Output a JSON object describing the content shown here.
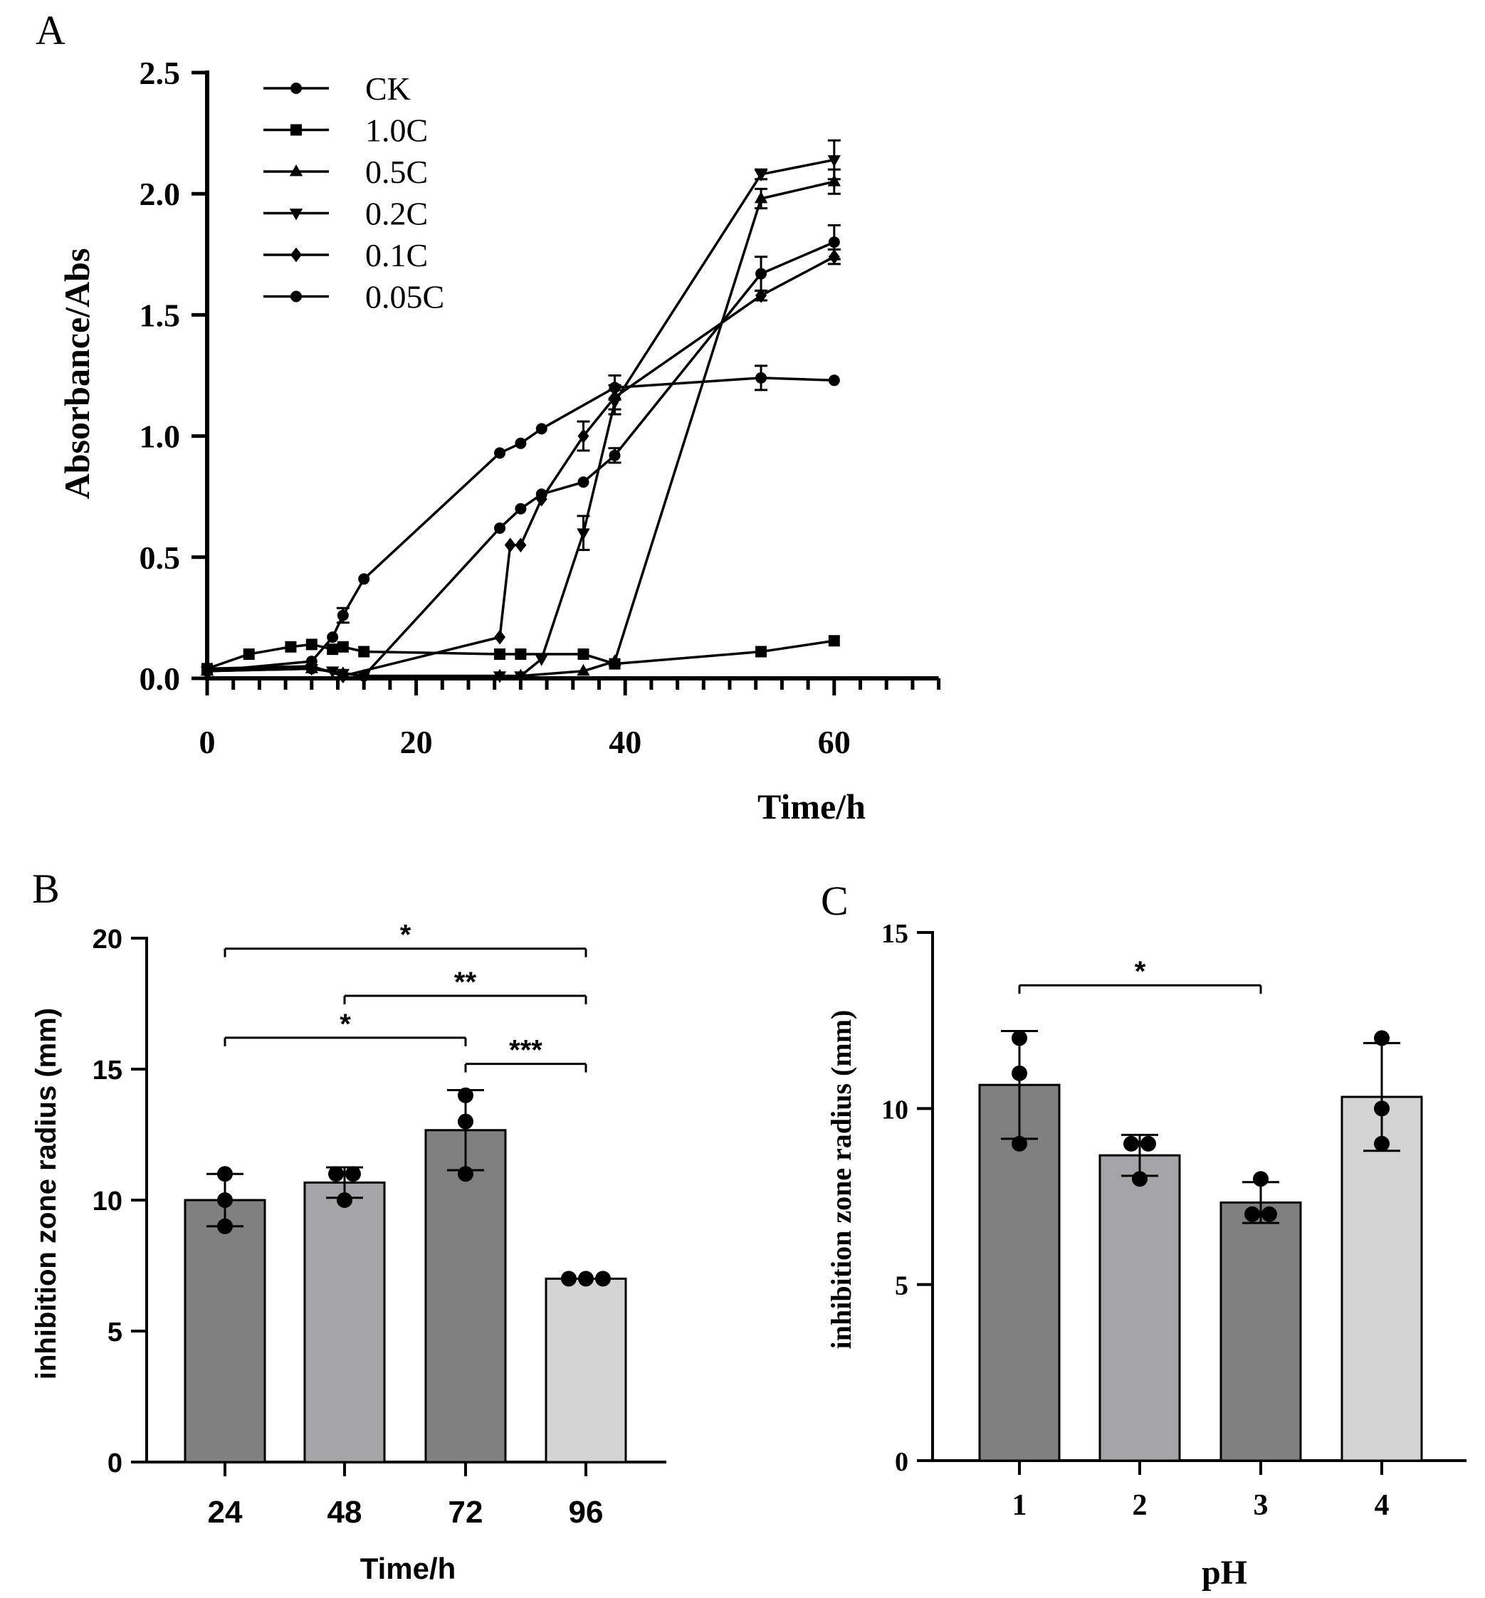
{
  "chart_data": [
    {
      "panel": "A",
      "type": "line",
      "xlabel": "Time/h",
      "ylabel": "Absorbance/Abs",
      "xlim": [
        0,
        70
      ],
      "ylim": [
        0,
        2.5
      ],
      "x_ticks": [
        "0",
        "20",
        "40",
        "60"
      ],
      "x_tick_values": [
        0,
        20,
        40,
        60
      ],
      "y_ticks": [
        "0.0",
        "0.5",
        "1.0",
        "1.5",
        "2.0",
        "2.5"
      ],
      "y_tick_values": [
        0,
        0.5,
        1.0,
        1.5,
        2.0,
        2.5
      ],
      "legend_position": "top-left",
      "series": [
        {
          "name": "CK",
          "marker": "circle",
          "x": [
            0,
            10,
            12,
            13,
            15,
            28,
            30,
            32,
            39,
            53,
            60
          ],
          "y": [
            0.03,
            0.07,
            0.17,
            0.26,
            0.41,
            0.93,
            0.97,
            1.03,
            1.2,
            1.24,
            1.23
          ],
          "err": [
            0,
            0,
            0,
            0.03,
            0,
            0,
            0,
            0,
            0.05,
            0.05,
            0
          ]
        },
        {
          "name": "1.0C",
          "marker": "square",
          "x": [
            0,
            4,
            8,
            10,
            12,
            13,
            15,
            28,
            30,
            36,
            39,
            53,
            60
          ],
          "y": [
            0.04,
            0.1,
            0.13,
            0.14,
            0.12,
            0.13,
            0.11,
            0.1,
            0.1,
            0.1,
            0.06,
            0.11,
            0.155
          ],
          "err": [
            0,
            0,
            0,
            0,
            0,
            0,
            0,
            0,
            0,
            0,
            0,
            0,
            0
          ]
        },
        {
          "name": "0.5C",
          "marker": "triangle-up",
          "x": [
            0,
            10,
            13,
            15,
            28,
            30,
            36,
            39,
            53,
            60
          ],
          "y": [
            0.03,
            0.04,
            0.02,
            0.01,
            0.01,
            0.01,
            0.03,
            0.07,
            1.98,
            2.05
          ],
          "err": [
            0,
            0,
            0,
            0,
            0,
            0,
            0,
            0,
            0.04,
            0.05
          ]
        },
        {
          "name": "0.2C",
          "marker": "triangle-down",
          "x": [
            0,
            10,
            12,
            13,
            15,
            28,
            30,
            32,
            36,
            39,
            53,
            60
          ],
          "y": [
            0.03,
            0.04,
            0.03,
            0.02,
            0.01,
            0.01,
            0.01,
            0.08,
            0.6,
            1.14,
            2.08,
            2.14
          ],
          "err": [
            0,
            0,
            0,
            0,
            0,
            0,
            0,
            0,
            0.07,
            0.05,
            0.02,
            0.08
          ]
        },
        {
          "name": "0.1C",
          "marker": "diamond",
          "x": [
            0,
            10,
            13,
            28,
            29,
            30,
            32,
            36,
            39,
            53,
            60
          ],
          "y": [
            0.04,
            0.05,
            0.01,
            0.17,
            0.55,
            0.55,
            0.74,
            1.0,
            1.16,
            1.58,
            1.74
          ],
          "err": [
            0,
            0,
            0,
            0,
            0,
            0,
            0,
            0.06,
            0.05,
            0.02,
            0.03
          ]
        },
        {
          "name": "0.05C",
          "marker": "circle",
          "x": [
            0,
            10,
            15,
            28,
            30,
            32,
            36,
            39,
            53,
            60
          ],
          "y": [
            0.04,
            0.04,
            0.01,
            0.62,
            0.7,
            0.76,
            0.81,
            0.92,
            1.67,
            1.8
          ],
          "err": [
            0,
            0,
            0,
            0,
            0,
            0,
            0,
            0.03,
            0.07,
            0.07
          ]
        }
      ]
    },
    {
      "panel": "B",
      "type": "bar",
      "xlabel": "Time/h",
      "ylabel": "inhibition zone radius (mm)",
      "ylim": [
        0,
        20
      ],
      "y_ticks": [
        "0",
        "5",
        "10",
        "15",
        "20"
      ],
      "y_tick_values": [
        0,
        5,
        10,
        15,
        20
      ],
      "categories": [
        "24",
        "48",
        "72",
        "96"
      ],
      "values": [
        10,
        10.67,
        12.67,
        7
      ],
      "errors": [
        1,
        0.58,
        1.53,
        0
      ],
      "colors": [
        "#808080",
        "#a5a5a8",
        "#808080",
        "#d4d4d4"
      ],
      "points": [
        [
          11,
          10,
          9
        ],
        [
          11,
          11,
          10
        ],
        [
          14,
          13,
          11
        ],
        [
          7,
          7,
          7
        ]
      ],
      "significance": [
        {
          "from": "24",
          "to": "96",
          "label": "*",
          "y": 19.6
        },
        {
          "from": "48",
          "to": "96",
          "label": "**",
          "y": 17.8
        },
        {
          "from": "24",
          "to": "72",
          "label": "*",
          "y": 16.2
        },
        {
          "from": "72",
          "to": "96",
          "label": "***",
          "y": 15.2
        }
      ]
    },
    {
      "panel": "C",
      "type": "bar",
      "xlabel": "pH",
      "ylabel": "inhibition zone radius (mm)",
      "ylim": [
        0,
        15
      ],
      "y_ticks": [
        "0",
        "5",
        "10",
        "15"
      ],
      "y_tick_values": [
        0,
        5,
        10,
        15
      ],
      "categories": [
        "1",
        "2",
        "3",
        "4"
      ],
      "values": [
        10.67,
        8.67,
        7.33,
        10.33
      ],
      "errors": [
        1.53,
        0.58,
        0.58,
        1.53
      ],
      "colors": [
        "#808080",
        "#a5a5a8",
        "#808080",
        "#d4d4d4"
      ],
      "points": [
        [
          12,
          11,
          9
        ],
        [
          9,
          9,
          8
        ],
        [
          8,
          7,
          7
        ],
        [
          12,
          10,
          9
        ]
      ],
      "significance": [
        {
          "from": "1",
          "to": "3",
          "label": "*",
          "y": 13.5
        }
      ]
    }
  ],
  "panels": {
    "a_label": "A",
    "b_label": "B",
    "c_label": "C"
  },
  "colors": {
    "axis": "#000000",
    "bar_dark": "#808080",
    "bar_mid": "#a5a5a8",
    "bar_light": "#d4d4d4"
  }
}
